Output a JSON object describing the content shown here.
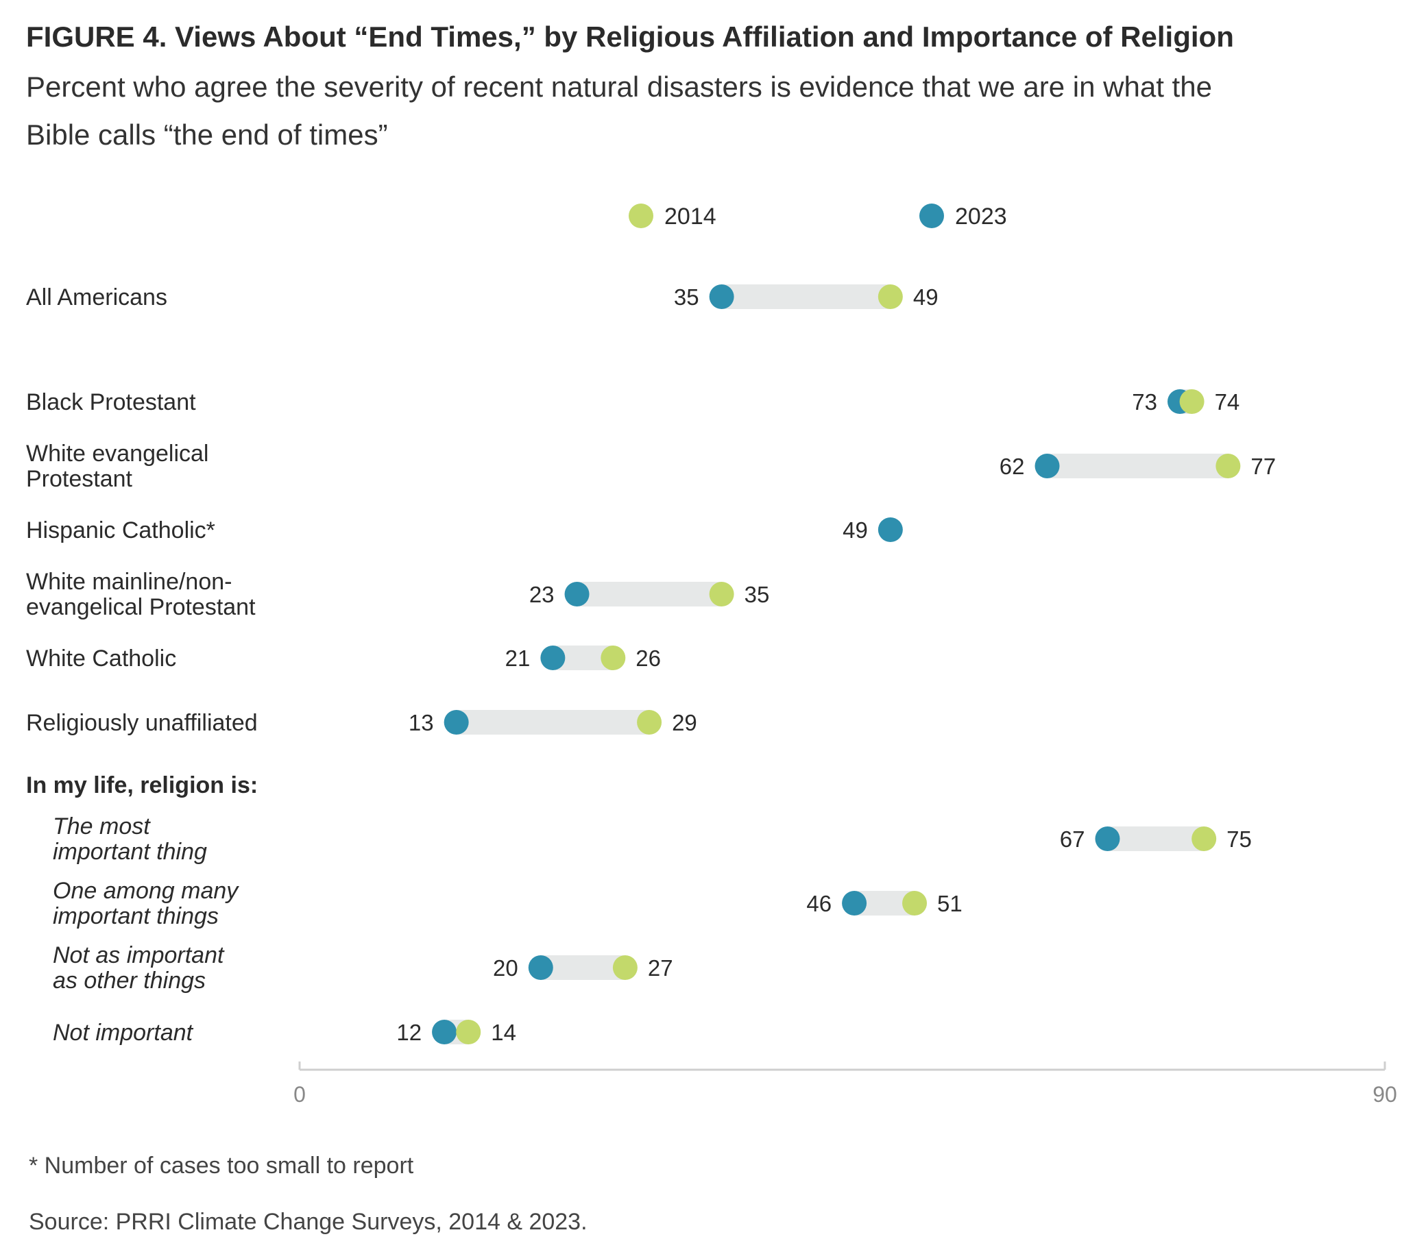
{
  "title": "FIGURE 4.  Views About “End Times,” by Religious Affiliation and Importance of Religion",
  "subtitle_line1": "Percent who agree the severity of recent natural disasters is evidence that we are in what the",
  "subtitle_line2": "Bible calls “the end of times”",
  "footnote": "* Number of cases too small to report",
  "source": "Source: PRRI Climate Change Surveys, 2014 & 2023.",
  "section_label": "In my life, religion is:",
  "colors": {
    "y2014": "#c3d96b",
    "y2023": "#2e8fae",
    "bar": "#e6e8e8",
    "axis": "#cfcfcf"
  },
  "chart_data": {
    "type": "dot-range",
    "xlim": [
      0,
      90
    ],
    "x_ticks": [
      "0",
      "90"
    ],
    "grid": false,
    "legend_position": "top-center",
    "series": [
      {
        "name": "2014",
        "color": "#c3d96b"
      },
      {
        "name": "2023",
        "color": "#2e8fae"
      }
    ],
    "rows": [
      {
        "label": [
          "All Americans"
        ],
        "style": "normal",
        "v2014": 49,
        "v2023": 35
      },
      {
        "label": [
          "Black Protestant"
        ],
        "style": "normal",
        "v2014": 74,
        "v2023": 73
      },
      {
        "label": [
          "White evangelical",
          "Protestant"
        ],
        "style": "normal",
        "v2014": 77,
        "v2023": 62
      },
      {
        "label": [
          "Hispanic Catholic*"
        ],
        "style": "normal",
        "v2014": null,
        "v2023": 49
      },
      {
        "label": [
          "White mainline/non-",
          "evangelical Protestant"
        ],
        "style": "normal",
        "v2014": 35,
        "v2023": 23
      },
      {
        "label": [
          "White Catholic"
        ],
        "style": "normal",
        "v2014": 26,
        "v2023": 21
      },
      {
        "label": [
          "Religiously unaffiliated"
        ],
        "style": "normal",
        "v2014": 29,
        "v2023": 13
      },
      {
        "label": [
          "The most",
          "important thing"
        ],
        "style": "italic",
        "v2014": 75,
        "v2023": 67
      },
      {
        "label": [
          "One among many",
          "important things"
        ],
        "style": "italic",
        "v2014": 51,
        "v2023": 46
      },
      {
        "label": [
          "Not as important",
          "as other things"
        ],
        "style": "italic",
        "v2014": 27,
        "v2023": 20
      },
      {
        "label": [
          "Not important"
        ],
        "style": "italic",
        "v2014": 14,
        "v2023": 12
      }
    ]
  }
}
